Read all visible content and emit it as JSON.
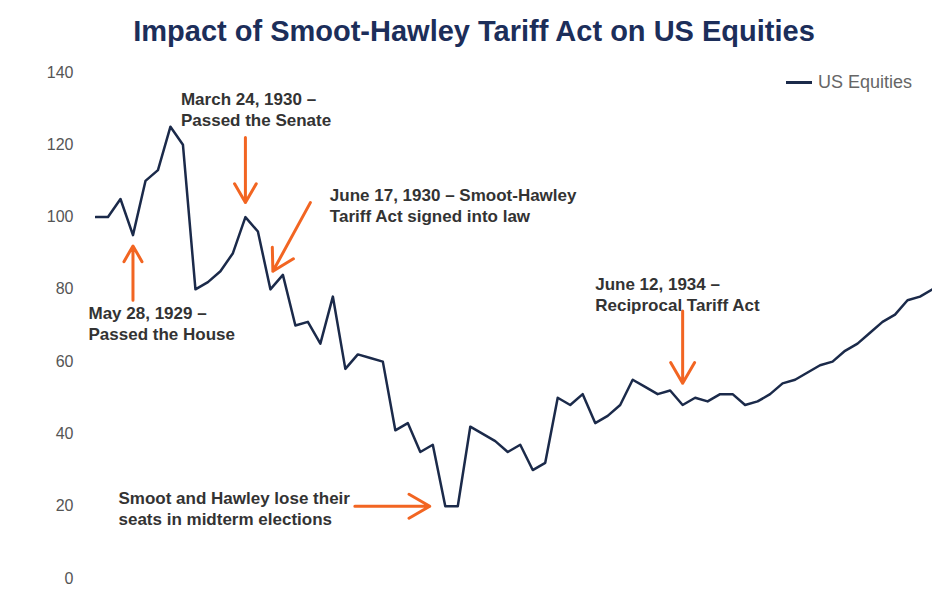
{
  "chart_data": {
    "type": "line",
    "title": "Impact of Smoot-Hawley Tariff Act on US Equities",
    "categories": [
      null,
      null,
      null,
      null,
      null,
      null,
      null,
      null,
      null,
      null,
      null,
      null,
      null,
      null,
      null,
      null,
      null,
      null,
      null,
      null,
      null,
      null,
      null,
      null,
      null,
      null,
      null,
      null,
      null,
      null,
      null,
      null,
      null,
      null,
      null,
      null,
      null,
      null,
      null,
      null,
      null,
      null,
      null,
      null,
      null,
      null,
      null,
      null,
      null,
      null,
      null,
      null,
      null,
      null,
      null,
      null,
      null,
      null,
      null,
      null,
      null,
      null,
      null,
      null,
      null,
      null,
      null,
      null
    ],
    "series": [
      {
        "name": "US Equities",
        "color": "#1b2a4a",
        "values": [
          100,
          100,
          105,
          95,
          110,
          113,
          125,
          120,
          80,
          82,
          85,
          90,
          100,
          96,
          80,
          84,
          70,
          71,
          65,
          78,
          58,
          62,
          61,
          60,
          41,
          43,
          35,
          37,
          20,
          20,
          42,
          40,
          38,
          35,
          37,
          30,
          32,
          50,
          48,
          51,
          43,
          45,
          48,
          55,
          53,
          51,
          52,
          48,
          50,
          49,
          51,
          51,
          48,
          49,
          51,
          54,
          55,
          57,
          59,
          60,
          63,
          65,
          68,
          71,
          73,
          77,
          78,
          80
        ]
      }
    ],
    "ylim": [
      0,
      140
    ],
    "yticks": [
      0,
      20,
      40,
      60,
      80,
      100,
      120,
      140
    ],
    "grid": false,
    "legend": "top-right",
    "annotations": [
      {
        "text": "May 28, 1929 –\nPassed the House",
        "point": 3
      },
      {
        "text": "March 24, 1930 –\nPassed the Senate",
        "point": 12
      },
      {
        "text": "June 17, 1930 – Smoot-Hawley\nTariff Act signed into law",
        "point": 15
      },
      {
        "text": "Smoot and Hawley lose their\nseats in midterm elections",
        "point": 28
      },
      {
        "text": "June 12, 1934 –\nReciprocal Tariff Act",
        "point": 47
      }
    ],
    "annotation_color": "#f26522"
  }
}
